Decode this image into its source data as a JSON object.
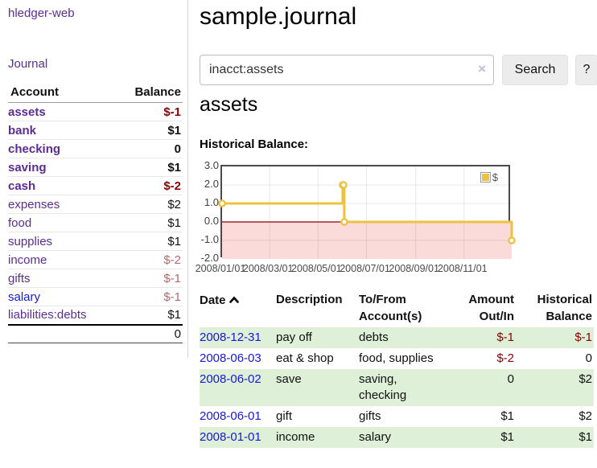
{
  "app": {
    "brand": "hledger-web",
    "nav_journal": "Journal"
  },
  "sidebar": {
    "headers": {
      "account": "Account",
      "balance": "Balance"
    },
    "accounts": [
      {
        "name": "assets",
        "balance": "$-1"
      },
      {
        "name": "bank",
        "balance": "$1"
      },
      {
        "name": "checking",
        "balance": "0"
      },
      {
        "name": "saving",
        "balance": "$1"
      },
      {
        "name": "cash",
        "balance": "$-2"
      },
      {
        "name": "expenses",
        "balance": "$2"
      },
      {
        "name": "food",
        "balance": "$1"
      },
      {
        "name": "supplies",
        "balance": "$1"
      },
      {
        "name": "income",
        "balance": "$-2"
      },
      {
        "name": "gifts",
        "balance": "$-1"
      },
      {
        "name": "salary",
        "balance": "$-1"
      },
      {
        "name": "liabilities:debts",
        "balance": "$1"
      }
    ],
    "total": "0"
  },
  "header": {
    "title": "sample.journal"
  },
  "search": {
    "value": "inacct:assets",
    "clear_icon": "×",
    "button": "Search",
    "help_button": "?"
  },
  "account_page": {
    "heading": "assets",
    "chart_label": "Historical Balance:"
  },
  "chart_data": {
    "type": "line",
    "step": true,
    "title": "Historical Balance",
    "legend": "$",
    "legend_position": "top-right",
    "grid": true,
    "x_range": [
      "2008-01-01",
      "2008-12-31"
    ],
    "y_range": [
      -2,
      3
    ],
    "y_ticks": [
      "3.0",
      "2.0",
      "1.0",
      "0.0",
      "-1.0",
      "-2.0"
    ],
    "x_ticks": [
      {
        "date": "2008-01-01",
        "label": "2008/01/01"
      },
      {
        "date": "2008-03-01",
        "label": "2008/03/01"
      },
      {
        "date": "2008-05-01",
        "label": "2008/05/01"
      },
      {
        "date": "2008-07-01",
        "label": "2008/07/01"
      },
      {
        "date": "2008-09-01",
        "label": "2008/09/01"
      },
      {
        "date": "2008-11-01",
        "label": "2008/11/01"
      }
    ],
    "series": [
      {
        "name": "$",
        "color": "#EDC240",
        "points": [
          [
            "2008-01-01",
            1
          ],
          [
            "2008-06-01",
            2
          ],
          [
            "2008-06-02",
            2
          ],
          [
            "2008-06-03",
            0
          ],
          [
            "2008-12-31",
            -1
          ]
        ]
      }
    ],
    "negative_region_color": "#fbdada",
    "zero_line_color": "#8b0000",
    "border_color": "#4a4a4a"
  },
  "register": {
    "headers": {
      "date": "Date",
      "description": "Description",
      "accounts": "To/From Account(s)",
      "amount": "Amount Out/In",
      "balance": "Historical Balance"
    },
    "sort_icon": "chevron-up",
    "rows": [
      {
        "date": "2008-12-31",
        "description": "pay off",
        "accounts": "debts",
        "amount": "$-1",
        "balance": "$-1"
      },
      {
        "date": "2008-06-03",
        "description": "eat & shop",
        "accounts": "food, supplies",
        "amount": "$-2",
        "balance": "0"
      },
      {
        "date": "2008-06-02",
        "description": "save",
        "accounts": "saving, checking",
        "amount": "0",
        "balance": "$2"
      },
      {
        "date": "2008-06-01",
        "description": "gift",
        "accounts": "gifts",
        "amount": "$1",
        "balance": "$2"
      },
      {
        "date": "2008-01-01",
        "description": "income",
        "accounts": "salary",
        "amount": "$1",
        "balance": "$1"
      }
    ]
  }
}
